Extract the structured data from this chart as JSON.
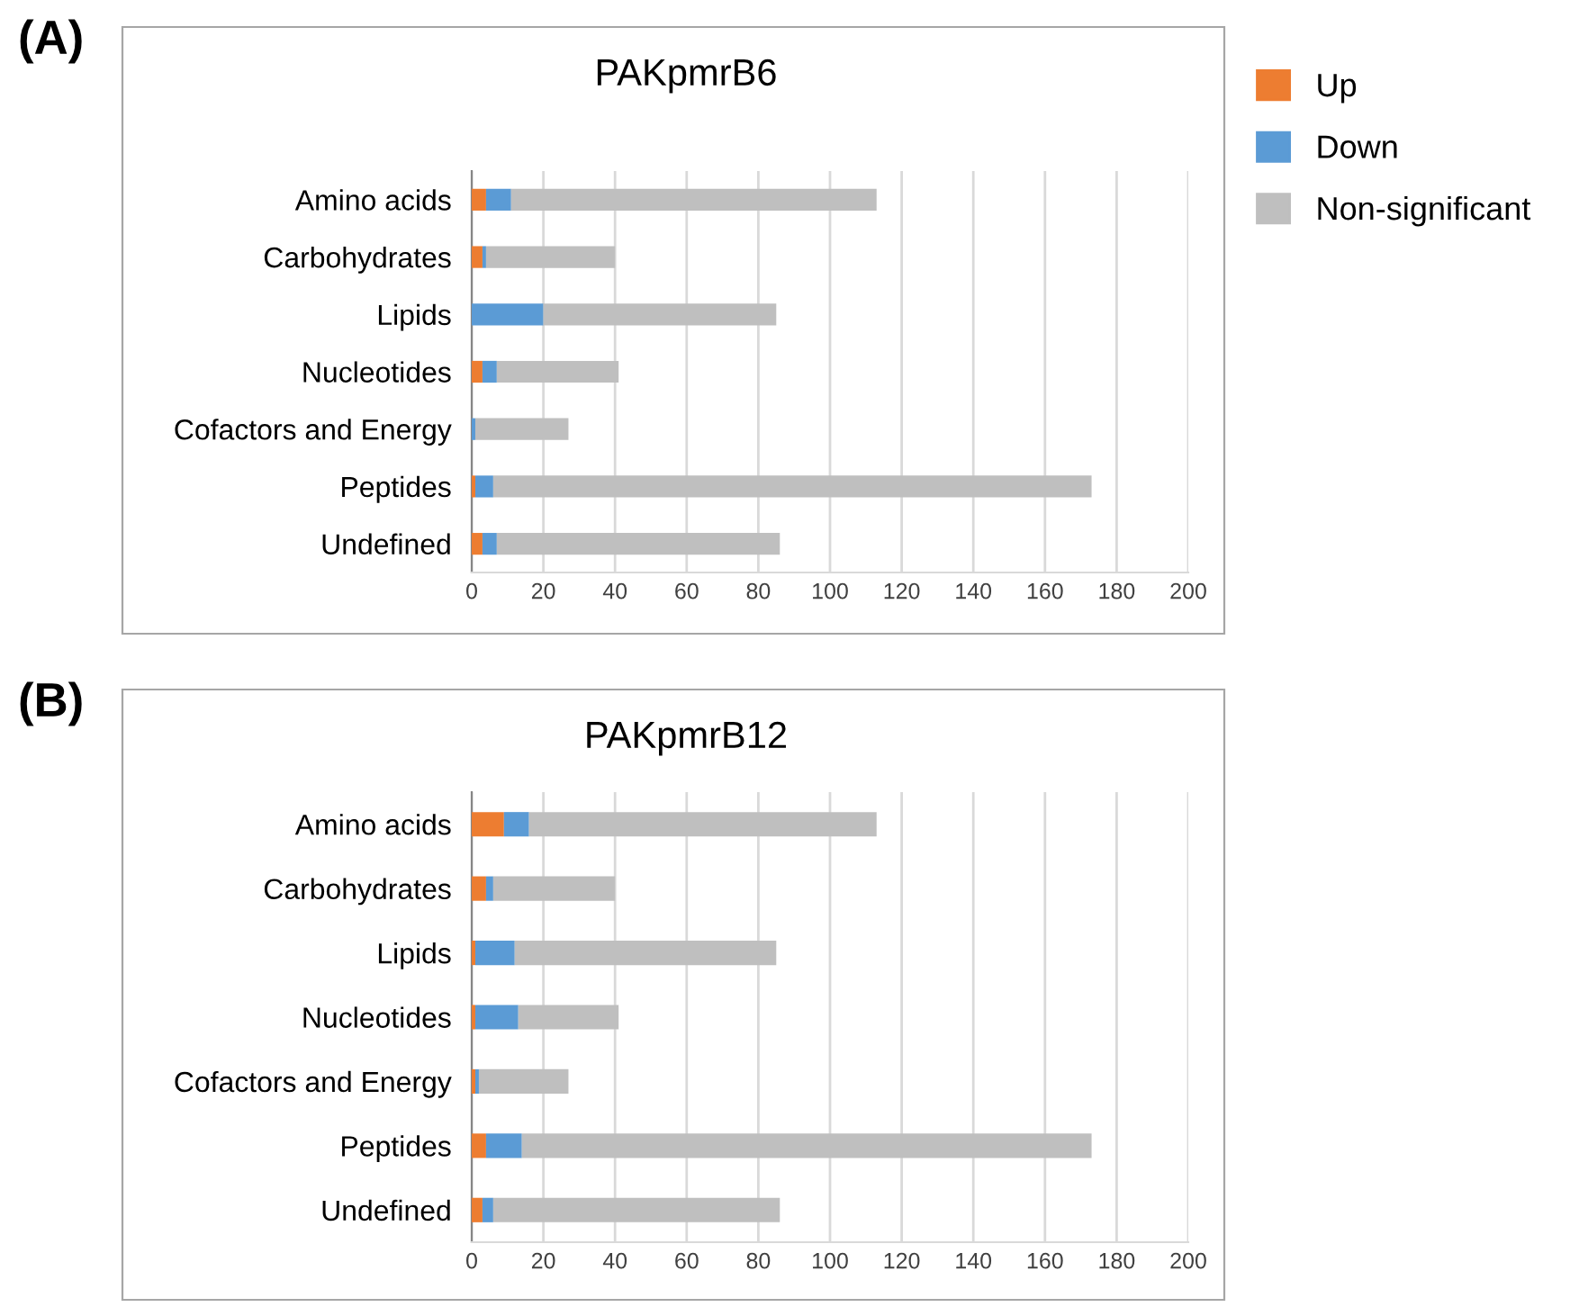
{
  "chart_data": [
    {
      "type": "bar",
      "orientation": "horizontal",
      "stacked": true,
      "title": "PAKpmrB6",
      "annotations": [
        "(A)"
      ],
      "categories": [
        "Amino acids",
        "Carbohydrates",
        "Lipids",
        "Nucleotides",
        "Cofactors and Energy",
        "Peptides",
        "Undefined"
      ],
      "series": [
        {
          "name": "Up",
          "color": "#ed7d31",
          "values": [
            4,
            3,
            0,
            3,
            0,
            1,
            3
          ]
        },
        {
          "name": "Down",
          "color": "#5b9bd5",
          "values": [
            7,
            1,
            20,
            4,
            1,
            5,
            4
          ]
        },
        {
          "name": "Non-significant",
          "color": "#bfbfbf",
          "values": [
            102,
            36,
            65,
            34,
            26,
            167,
            79
          ]
        }
      ],
      "xlim": [
        0,
        200
      ],
      "xticks": [
        0,
        20,
        40,
        60,
        80,
        100,
        120,
        140,
        160,
        180,
        200
      ],
      "grid": "x",
      "legend": "right"
    },
    {
      "type": "bar",
      "orientation": "horizontal",
      "stacked": true,
      "title": "PAKpmrB12",
      "annotations": [
        "(B)"
      ],
      "categories": [
        "Amino acids",
        "Carbohydrates",
        "Lipids",
        "Nucleotides",
        "Cofactors and Energy",
        "Peptides",
        "Undefined"
      ],
      "series": [
        {
          "color": "#ed7d31",
          "values": [
            9,
            4,
            1,
            1,
            1,
            4,
            3
          ]
        },
        {
          "color": "#5b9bd5",
          "values": [
            7,
            2,
            11,
            12,
            1,
            10,
            3
          ]
        },
        {
          "color": "#bfbfbf",
          "values": [
            97,
            34,
            73,
            28,
            25,
            159,
            80
          ]
        }
      ],
      "xlim": [
        0,
        200
      ],
      "xticks": [
        0,
        20,
        40,
        60,
        80,
        100,
        120,
        140,
        160,
        180,
        200
      ],
      "grid": "x",
      "legend": false
    }
  ]
}
